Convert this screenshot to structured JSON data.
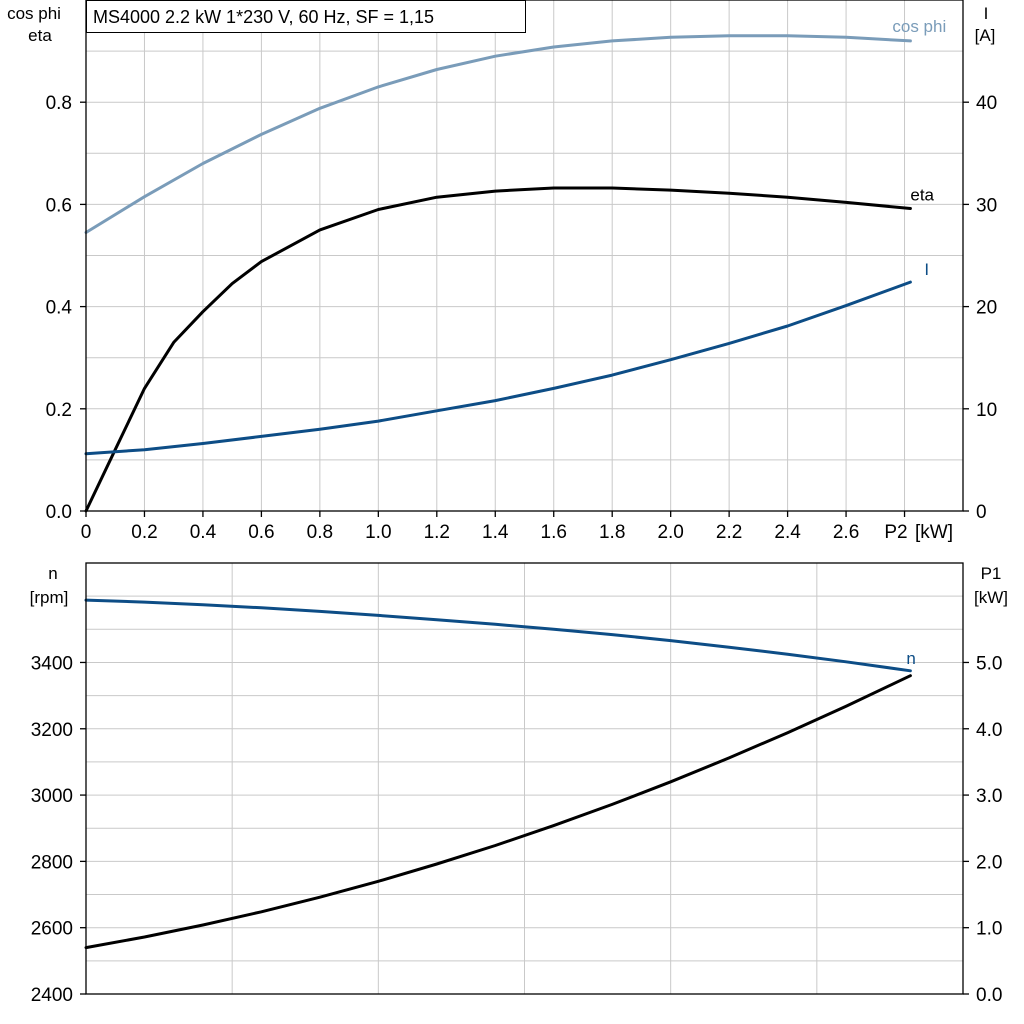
{
  "colors": {
    "cosphi": "#7a9cb9",
    "eta": "#000000",
    "current": "#0d4d86",
    "n": "#0d4d86",
    "p1": "#000000",
    "grid": "#c9c9c9"
  },
  "chart_data": [
    {
      "type": "line",
      "title": "MS4000   2.2 kW   1*230 V, 60 Hz, SF = 1,15",
      "xlabel": "P2 [kW]",
      "xlabel_name": "P2",
      "xlabel_unit": "[kW]",
      "ylabel_left": [
        "cos phi",
        "eta"
      ],
      "ylabel_right": [
        "I",
        "[A]"
      ],
      "xlim": [
        0,
        3.0
      ],
      "ylim_left": [
        0,
        1.0
      ],
      "ylim_right": [
        0,
        50
      ],
      "x_ticks": [
        "0",
        "0.2",
        "0.4",
        "0.6",
        "0.8",
        "1.0",
        "1.2",
        "1.4",
        "1.6",
        "1.8",
        "2.0",
        "2.2",
        "2.4",
        "2.6"
      ],
      "y_left_ticks": [
        "0.0",
        "0.2",
        "0.4",
        "0.6",
        "0.8"
      ],
      "y_right_ticks": [
        "0",
        "10",
        "20",
        "30",
        "40"
      ],
      "grid": true,
      "series": [
        {
          "name": "cos phi",
          "axis": "left",
          "x": [
            0,
            0.2,
            0.4,
            0.6,
            0.8,
            1.0,
            1.2,
            1.4,
            1.6,
            1.8,
            2.0,
            2.2,
            2.4,
            2.6,
            2.82
          ],
          "y": [
            0.545,
            0.615,
            0.68,
            0.737,
            0.788,
            0.83,
            0.864,
            0.89,
            0.908,
            0.92,
            0.927,
            0.93,
            0.93,
            0.927,
            0.92
          ]
        },
        {
          "name": "eta",
          "axis": "left",
          "x": [
            0,
            0.1,
            0.2,
            0.3,
            0.4,
            0.5,
            0.6,
            0.8,
            1.0,
            1.2,
            1.4,
            1.6,
            1.8,
            2.0,
            2.2,
            2.4,
            2.6,
            2.82
          ],
          "y": [
            0.0,
            0.12,
            0.24,
            0.33,
            0.39,
            0.445,
            0.488,
            0.55,
            0.59,
            0.614,
            0.626,
            0.632,
            0.632,
            0.628,
            0.622,
            0.614,
            0.604,
            0.592
          ]
        },
        {
          "name": "I",
          "axis": "right",
          "x": [
            0,
            0.2,
            0.4,
            0.6,
            0.8,
            1.0,
            1.2,
            1.4,
            1.6,
            1.8,
            2.0,
            2.2,
            2.4,
            2.6,
            2.82
          ],
          "y": [
            5.6,
            6.0,
            6.6,
            7.3,
            8.0,
            8.8,
            9.8,
            10.8,
            12.0,
            13.3,
            14.8,
            16.4,
            18.1,
            20.1,
            22.4
          ]
        }
      ]
    },
    {
      "type": "line",
      "xlim": [
        0,
        3.0
      ],
      "ylabel_left": [
        "n",
        "[rpm]"
      ],
      "ylabel_right": [
        "P1",
        "[kW]"
      ],
      "ylim_left": [
        2400,
        3700
      ],
      "ylim_right": [
        0,
        6.5
      ],
      "y_left_ticks": [
        "2400",
        "2600",
        "2800",
        "3000",
        "3200",
        "3400"
      ],
      "y_right_ticks": [
        "0.0",
        "1.0",
        "2.0",
        "3.0",
        "4.0",
        "5.0"
      ],
      "grid": true,
      "series": [
        {
          "name": "n",
          "axis": "left",
          "x": [
            0,
            0.2,
            0.4,
            0.6,
            0.8,
            1.0,
            1.2,
            1.4,
            1.6,
            1.8,
            2.0,
            2.2,
            2.4,
            2.6,
            2.82
          ],
          "y": [
            3588,
            3582,
            3574,
            3565,
            3554,
            3542,
            3529,
            3515,
            3500,
            3484,
            3466,
            3446,
            3425,
            3402,
            3375
          ]
        },
        {
          "name": "P1",
          "axis": "right",
          "x": [
            0,
            0.2,
            0.4,
            0.6,
            0.8,
            1.0,
            1.2,
            1.4,
            1.6,
            1.8,
            2.0,
            2.2,
            2.4,
            2.6,
            2.82
          ],
          "y": [
            0.7,
            0.86,
            1.04,
            1.24,
            1.46,
            1.7,
            1.96,
            2.24,
            2.54,
            2.86,
            3.2,
            3.56,
            3.94,
            4.34,
            4.8
          ]
        }
      ]
    }
  ]
}
